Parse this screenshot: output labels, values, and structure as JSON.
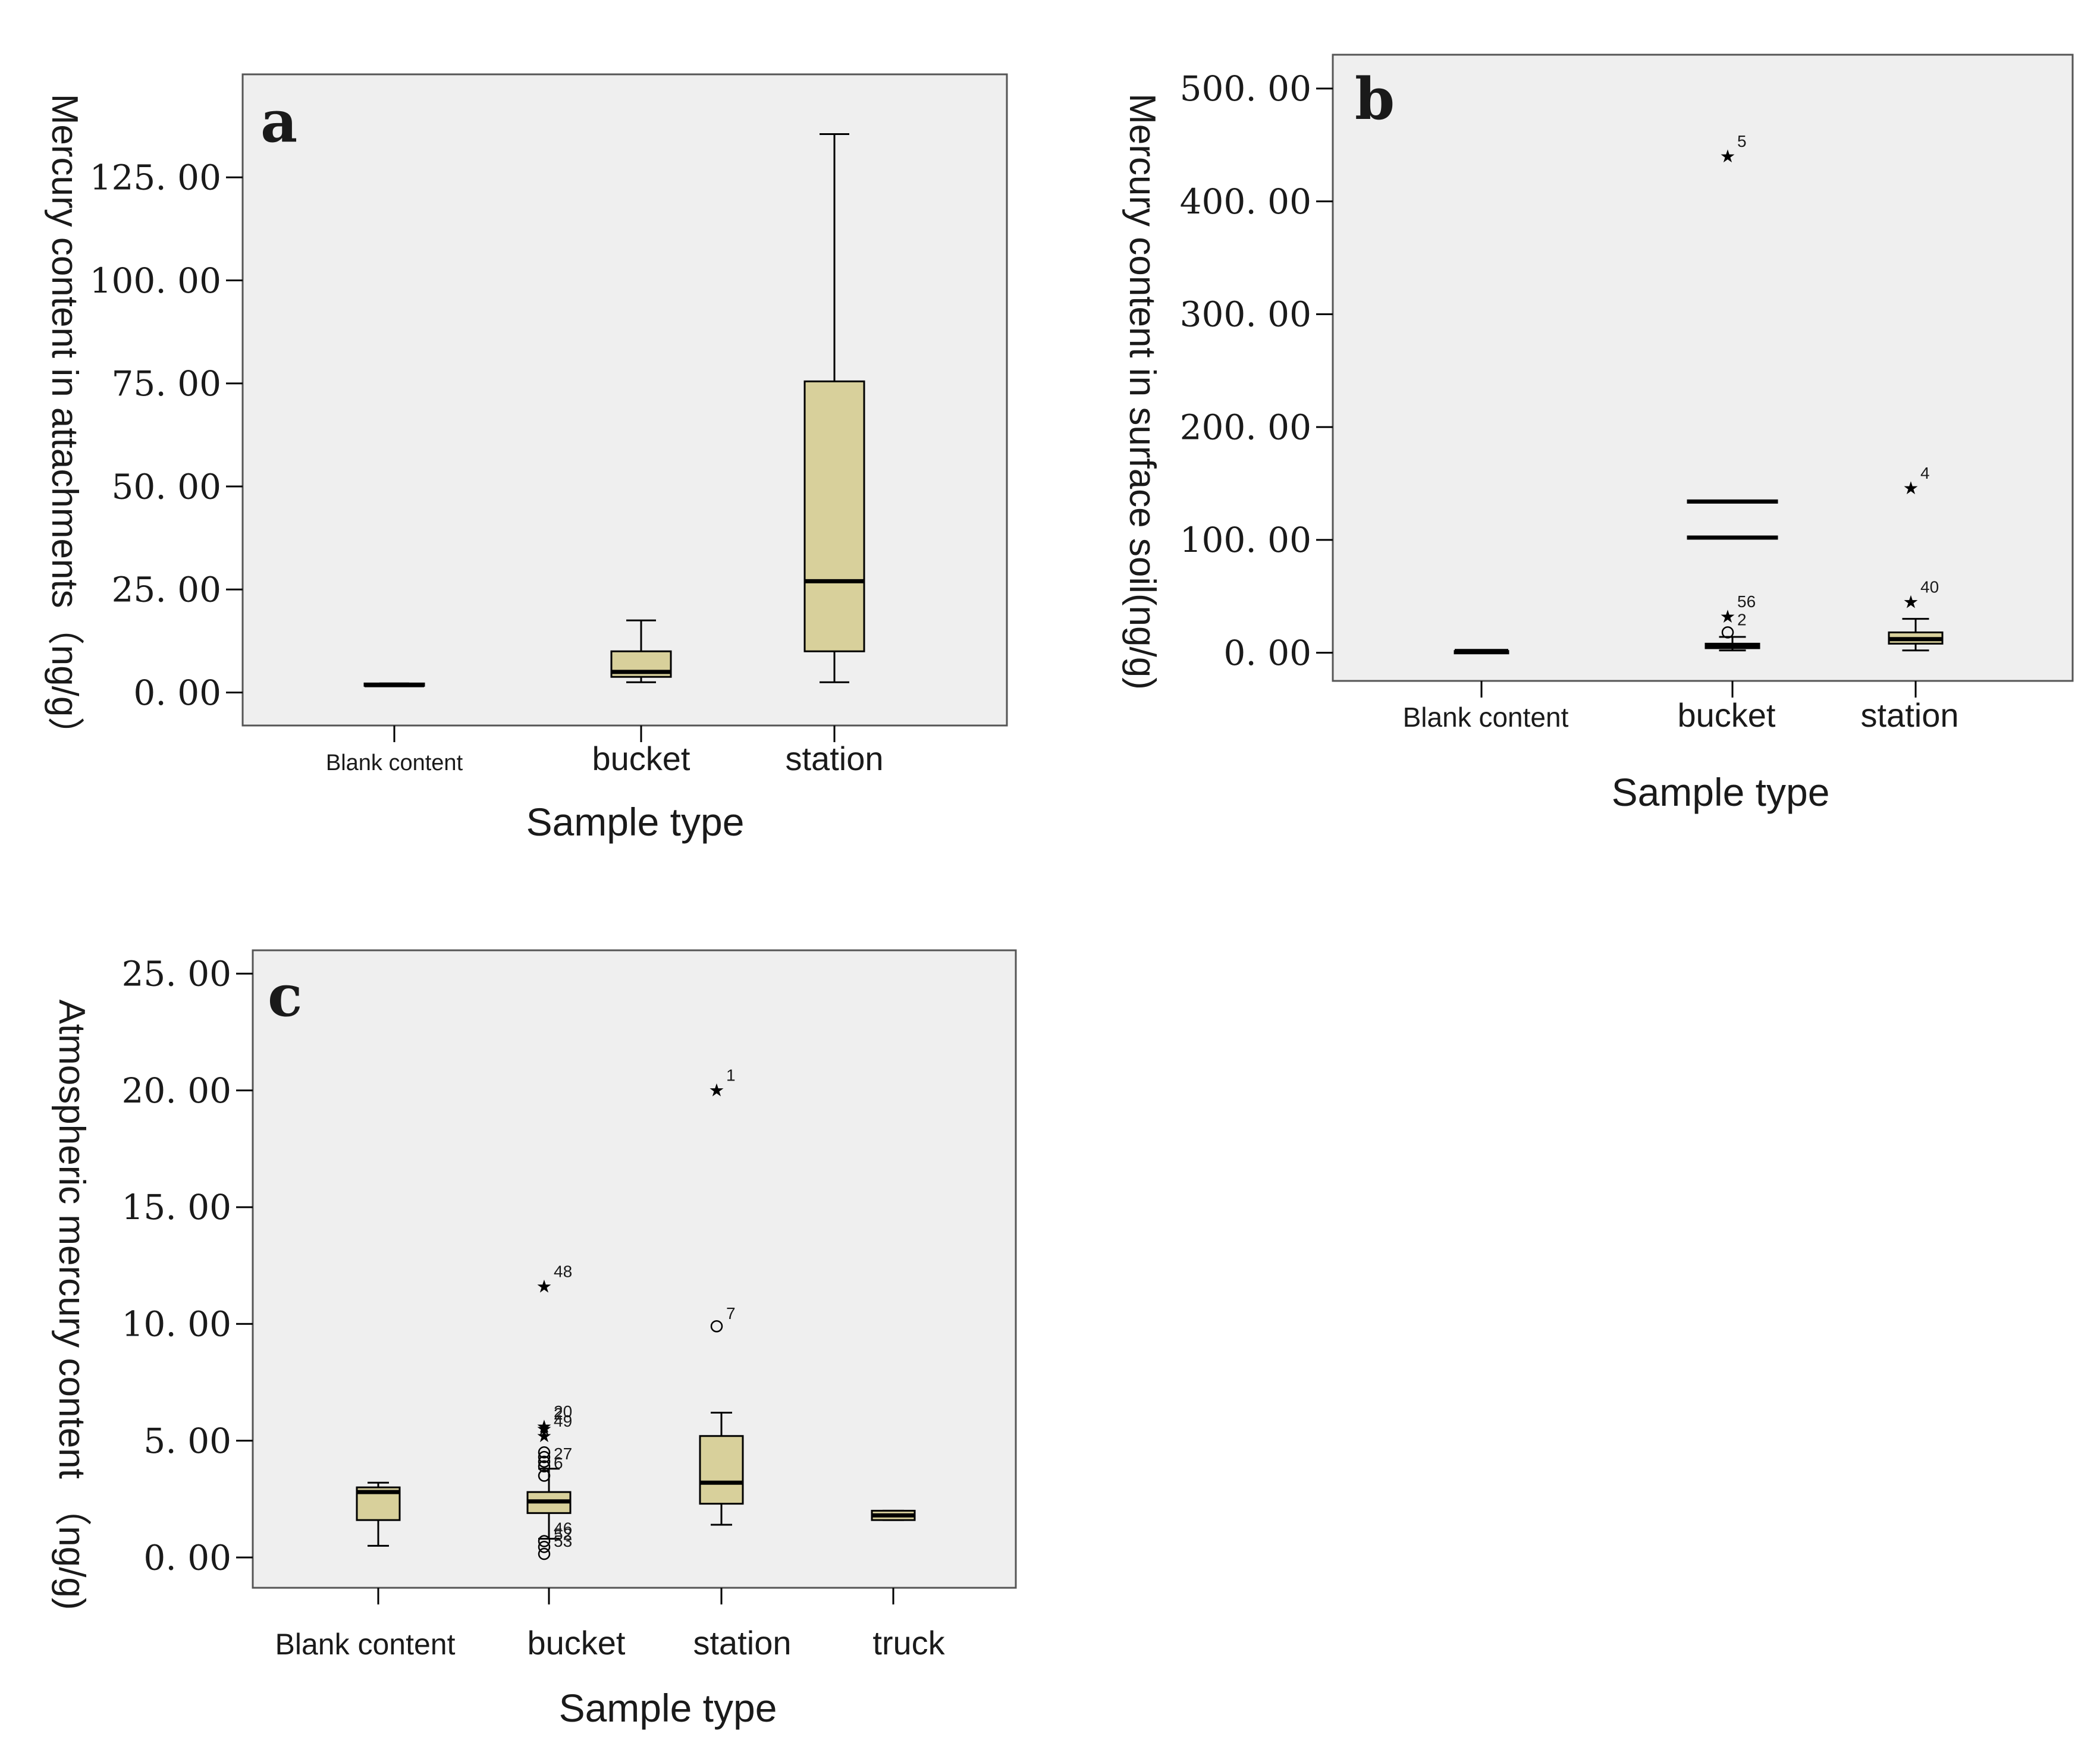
{
  "colors": {
    "plot_bg": "#efefef",
    "box_fill": "#d8d09b",
    "stroke": "#000000",
    "frame": "#555555",
    "text": "#1a1a1a"
  },
  "chart_data": [
    {
      "id": "a",
      "type": "boxplot",
      "panel_label": "a",
      "xlabel": "Sample type",
      "ylabel": "Mercury content in attachments（ng/g）",
      "ylim": [
        -8,
        150
      ],
      "yticks": [
        0,
        25,
        50,
        75,
        100,
        125
      ],
      "ytick_labels": [
        "0. 00",
        "25. 00",
        "50. 00",
        "75. 00",
        "100. 00",
        "125. 00"
      ],
      "categories": [
        {
          "label": "Blank content",
          "min": 1.8,
          "q1": 1.8,
          "median": 1.8,
          "q3": 2.2,
          "max": 2.2,
          "outliers": []
        },
        {
          "label": "bucket",
          "min": 2.5,
          "q1": 3.8,
          "median": 5.0,
          "q3": 10.0,
          "max": 17.5,
          "outliers": []
        },
        {
          "label": "station",
          "min": 2.5,
          "q1": 10.0,
          "median": 27.0,
          "q3": 75.5,
          "max": 135.5,
          "outliers": []
        }
      ]
    },
    {
      "id": "b",
      "type": "boxplot",
      "panel_label": "b",
      "xlabel": "Sample type",
      "ylabel": "Mercury content in surface soil(ng/g)",
      "ylim": [
        -25,
        530
      ],
      "yticks": [
        0,
        100,
        200,
        300,
        400,
        500
      ],
      "ytick_labels": [
        "0. 00",
        "100. 00",
        "200. 00",
        "300. 00",
        "400. 00",
        "500. 00"
      ],
      "categories": [
        {
          "label": "Blank content",
          "min": 1.5,
          "q1": 1.5,
          "median": 1.5,
          "q3": 1.5,
          "max": 1.5,
          "outliers": []
        },
        {
          "label": "bucket",
          "min": 2,
          "q1": 4,
          "median": 6,
          "q3": 8,
          "max": 14,
          "outliers": [
            {
              "value": 442,
              "marker": "star",
              "label": "5"
            },
            {
              "value": 134,
              "marker": "dash",
              "label": ""
            },
            {
              "value": 102,
              "marker": "dash",
              "label": ""
            },
            {
              "value": 34,
              "marker": "star",
              "label": "56"
            },
            {
              "value": 18,
              "marker": "circle",
              "label": "2"
            }
          ]
        },
        {
          "label": "station",
          "min": 2,
          "q1": 8,
          "median": 12,
          "q3": 18,
          "max": 30,
          "outliers": [
            {
              "value": 148,
              "marker": "star",
              "label": "4"
            },
            {
              "value": 47,
              "marker": "star",
              "label": "40"
            }
          ]
        }
      ]
    },
    {
      "id": "c",
      "type": "boxplot",
      "panel_label": "c",
      "xlabel": "Sample type",
      "ylabel": "Atmospheric mercury content （ng/g)",
      "ylim": [
        -1.3,
        26
      ],
      "yticks": [
        0,
        5,
        10,
        15,
        20,
        25
      ],
      "ytick_labels": [
        "0. 00",
        "5. 00",
        "10. 00",
        "15. 00",
        "20. 00",
        "25. 00"
      ],
      "categories": [
        {
          "label": "Blank content",
          "min": 0.5,
          "q1": 1.6,
          "median": 2.8,
          "q3": 3.0,
          "max": 3.2,
          "outliers": []
        },
        {
          "label": "bucket",
          "min": 0.8,
          "q1": 1.9,
          "median": 2.4,
          "q3": 2.8,
          "max": 3.8,
          "outliers": [
            {
              "value": 11.7,
              "marker": "star",
              "label": "48"
            },
            {
              "value": 5.7,
              "marker": "star",
              "label": "20"
            },
            {
              "value": 5.6,
              "marker": "star",
              "label": "2"
            },
            {
              "value": 5.3,
              "marker": "star",
              "label": "49"
            },
            {
              "value": 4.5,
              "marker": "circle",
              "label": ""
            },
            {
              "value": 4.3,
              "marker": "circle",
              "label": ""
            },
            {
              "value": 4.1,
              "marker": "circle",
              "label": ""
            },
            {
              "value": 3.9,
              "marker": "circle",
              "label": "27"
            },
            {
              "value": 3.5,
              "marker": "circle",
              "label": "6"
            },
            {
              "value": 0.7,
              "marker": "circle",
              "label": "46"
            },
            {
              "value": 0.45,
              "marker": "circle",
              "label": "52"
            },
            {
              "value": 0.15,
              "marker": "circle",
              "label": "53"
            }
          ]
        },
        {
          "label": "station",
          "min": 1.4,
          "q1": 2.3,
          "median": 3.2,
          "q3": 5.2,
          "max": 6.2,
          "outliers": [
            {
              "value": 20.1,
              "marker": "star",
              "label": "1"
            },
            {
              "value": 9.9,
              "marker": "circle",
              "label": "7"
            }
          ]
        },
        {
          "label": "truck",
          "min": 1.6,
          "q1": 1.6,
          "median": 1.8,
          "q3": 2.0,
          "max": 2.0,
          "outliers": []
        }
      ]
    }
  ]
}
